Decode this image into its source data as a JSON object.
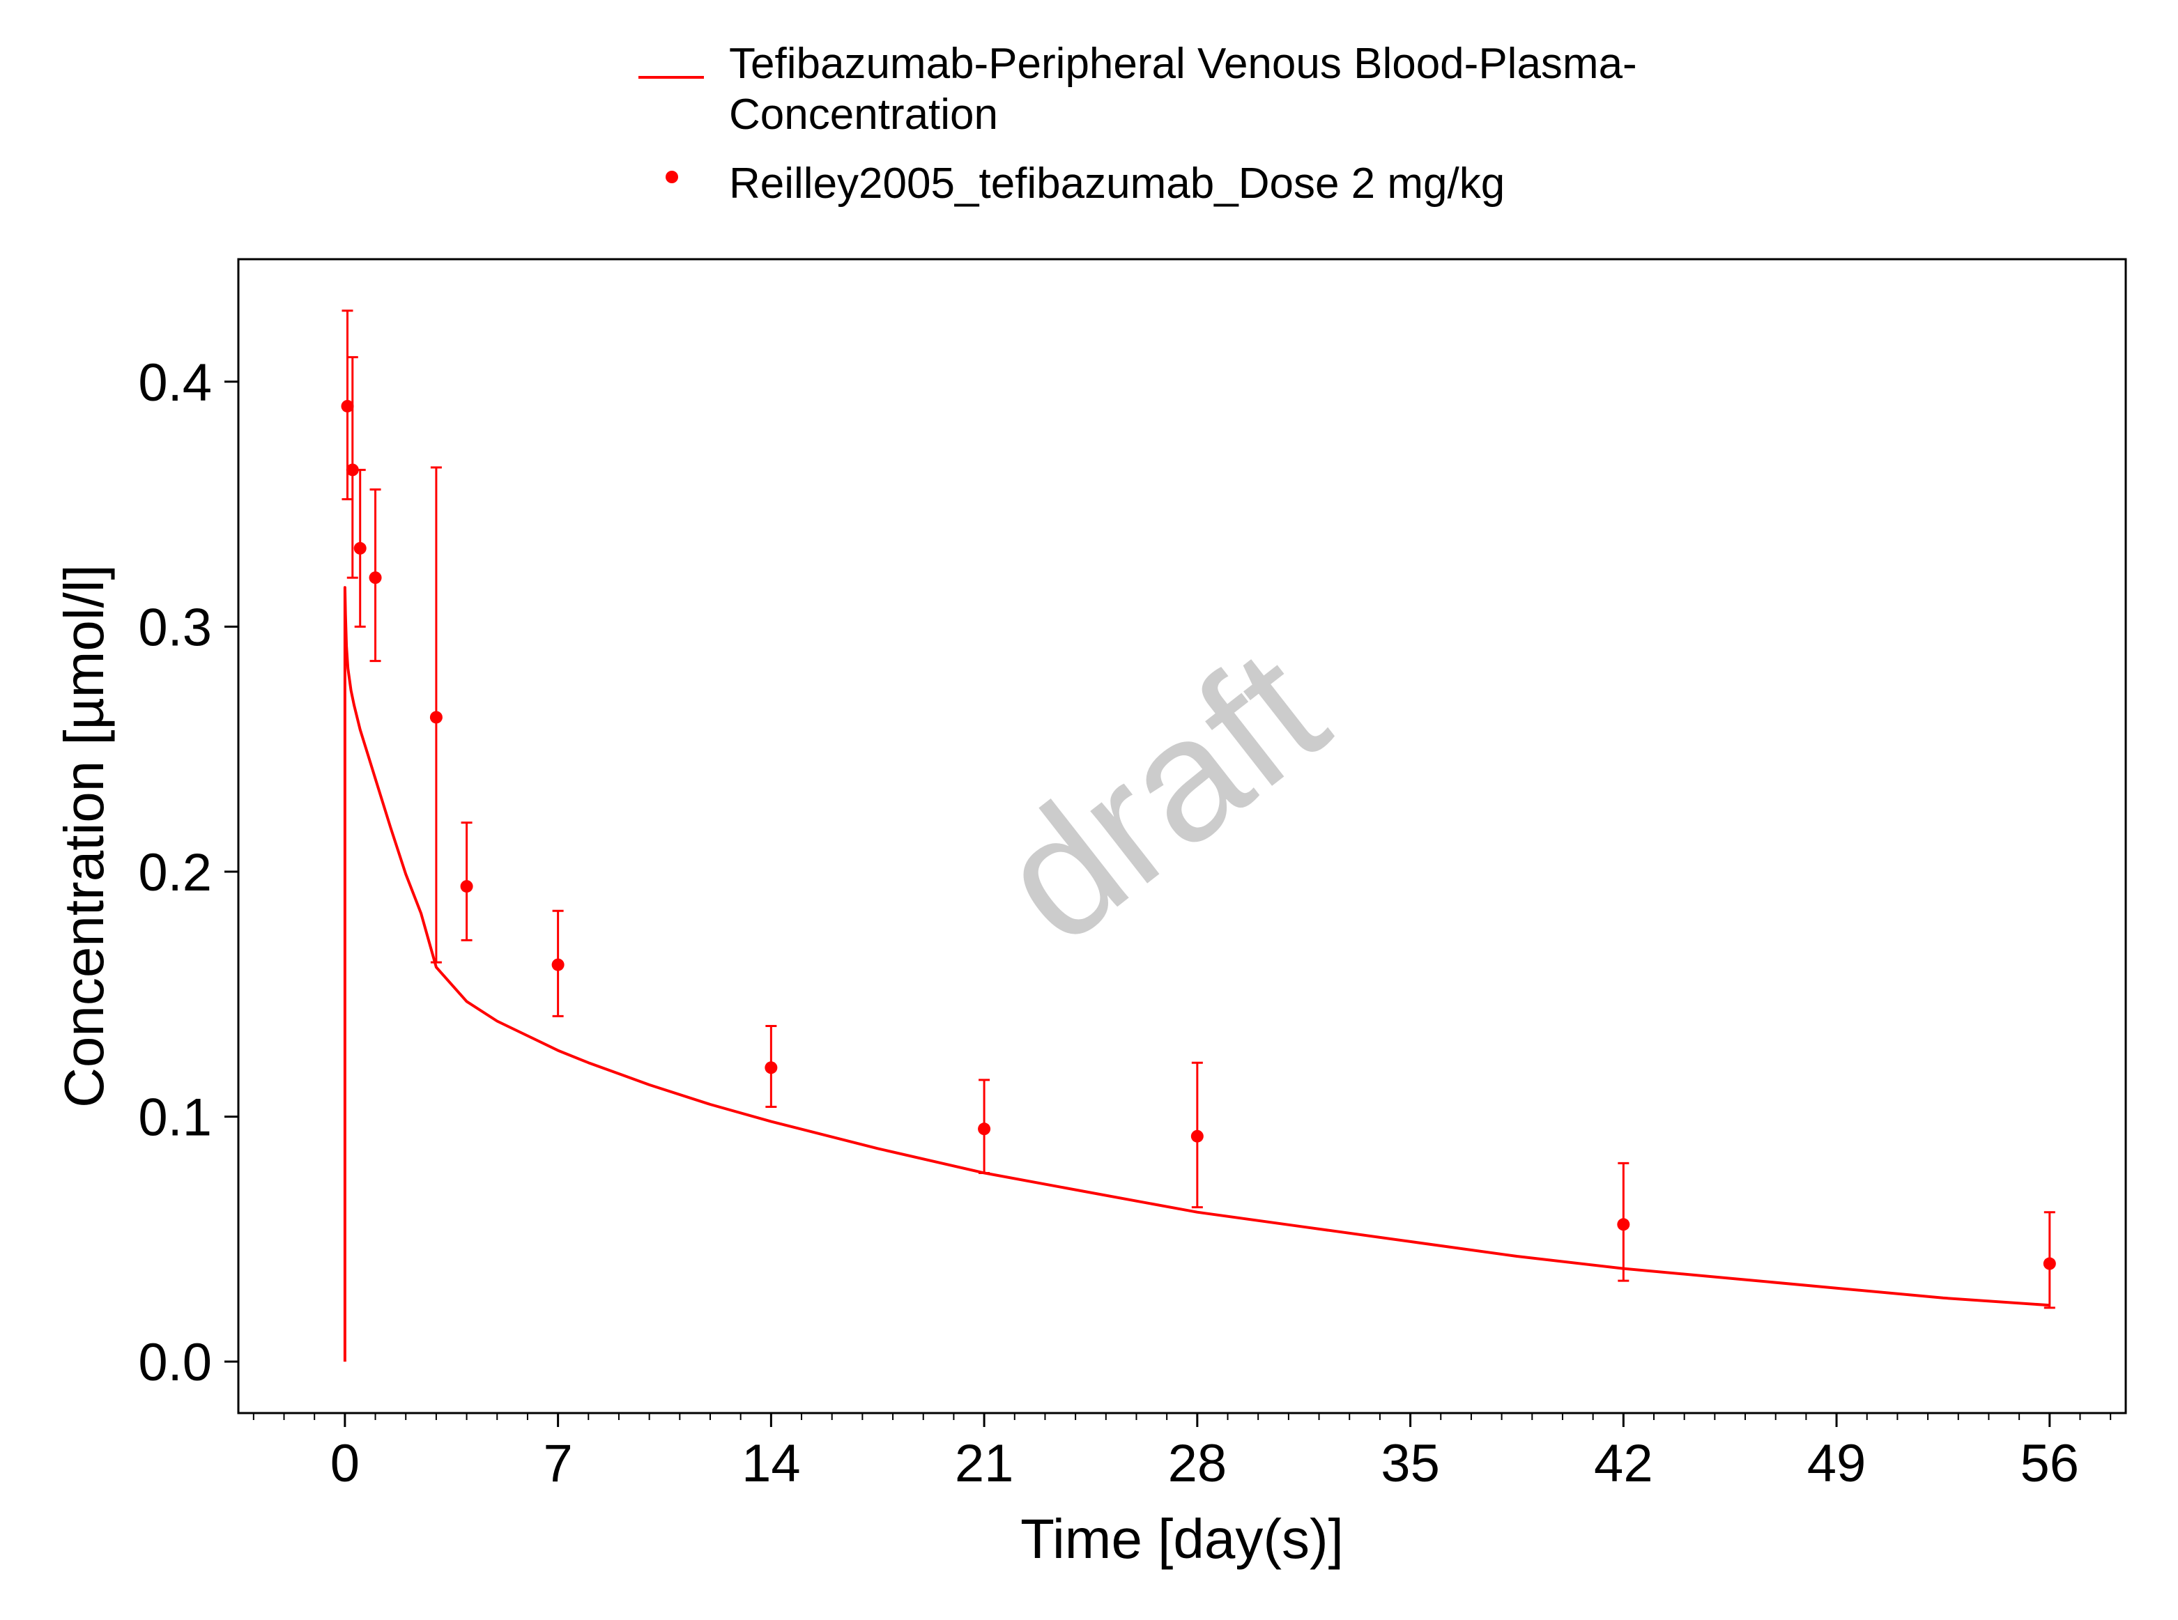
{
  "chart_data": {
    "type": "line",
    "title": "",
    "xlabel": "Time [day(s)]",
    "ylabel": "Concentration [µmol/l]",
    "xlim": [
      -3.5,
      58.5
    ],
    "ylim": [
      -0.021,
      0.45
    ],
    "x_ticks": [
      0,
      7,
      14,
      21,
      28,
      35,
      42,
      49,
      56
    ],
    "x_tick_labels": [
      "0",
      "7",
      "14",
      "21",
      "28",
      "35",
      "42",
      "49",
      "56"
    ],
    "x_minor_step": 1,
    "y_ticks": [
      0.0,
      0.1,
      0.2,
      0.3,
      0.4
    ],
    "y_tick_labels": [
      "0.0",
      "0.1",
      "0.2",
      "0.3",
      "0.4"
    ],
    "grid": false,
    "legend_position": "top",
    "legend": [
      {
        "kind": "line",
        "lines": [
          "Tefibazumab-Peripheral Venous Blood-Plasma-",
          "Concentration"
        ]
      },
      {
        "kind": "point",
        "lines": [
          "Reilley2005_tefibazumab_Dose 2 mg/kg"
        ]
      }
    ],
    "watermark": "draft",
    "series": [
      {
        "name": "Tefibazumab-Peripheral Venous Blood-Plasma-Concentration",
        "kind": "line",
        "color": "#ff0000",
        "x": [
          0,
          0,
          0.02,
          0.05,
          0.1,
          0.2,
          0.3,
          0.5,
          0.75,
          1,
          1.5,
          2,
          2.5,
          3,
          4,
          5,
          6,
          7,
          8,
          10,
          12,
          14,
          17.5,
          21,
          24.5,
          28,
          31.5,
          35,
          38.5,
          42,
          45.5,
          49,
          52.5,
          56
        ],
        "y": [
          0.0,
          0.316,
          0.305,
          0.292,
          0.283,
          0.274,
          0.268,
          0.258,
          0.248,
          0.238,
          0.218,
          0.199,
          0.183,
          0.161,
          0.147,
          0.139,
          0.133,
          0.127,
          0.122,
          0.113,
          0.105,
          0.098,
          0.087,
          0.077,
          0.069,
          0.061,
          0.055,
          0.049,
          0.043,
          0.038,
          0.034,
          0.03,
          0.026,
          0.023
        ]
      },
      {
        "name": "Reilley2005_tefibazumab_Dose 2 mg/kg",
        "kind": "points",
        "color": "#ff0000",
        "x": [
          0.083,
          0.25,
          0.5,
          1,
          3,
          4,
          7,
          14,
          21,
          28,
          42,
          56
        ],
        "y": [
          0.39,
          0.364,
          0.332,
          0.32,
          0.263,
          0.194,
          0.162,
          0.12,
          0.095,
          0.092,
          0.056,
          0.04
        ],
        "err_low": [
          0.352,
          0.32,
          0.3,
          0.286,
          0.163,
          0.172,
          0.141,
          0.104,
          0.077,
          0.063,
          0.033,
          0.022
        ],
        "err_high": [
          0.429,
          0.41,
          0.364,
          0.356,
          0.365,
          0.22,
          0.184,
          0.137,
          0.115,
          0.122,
          0.081,
          0.061
        ]
      }
    ]
  }
}
